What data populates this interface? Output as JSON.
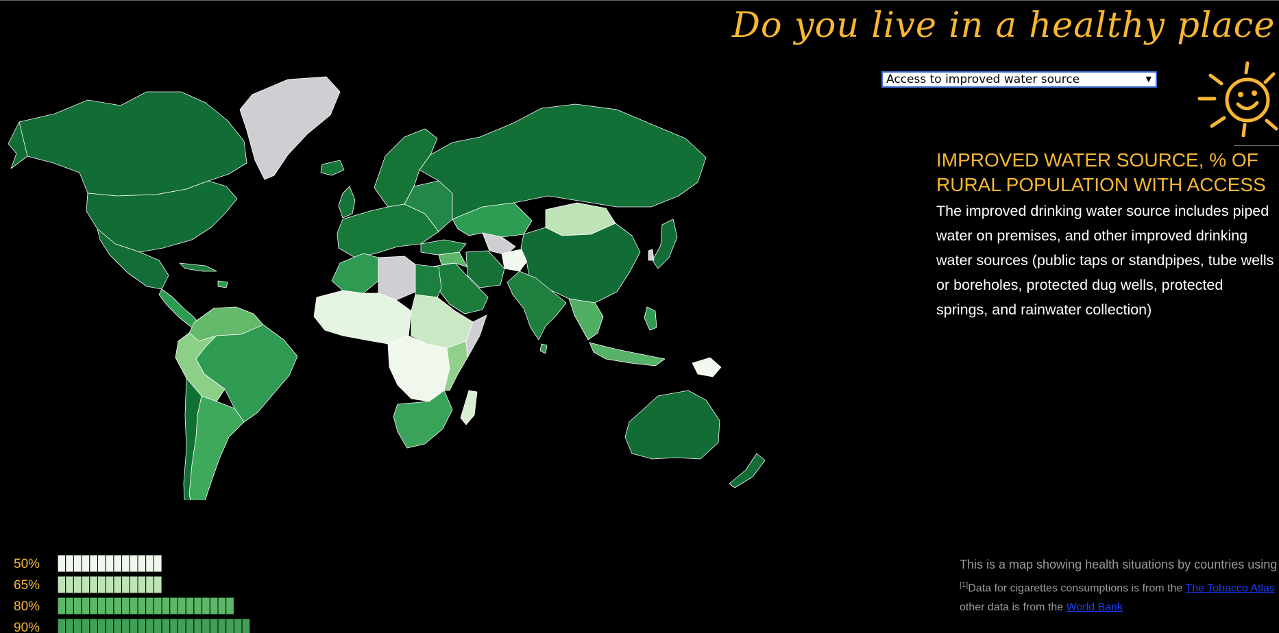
{
  "page": {
    "title": "Do you live in a healthy place?"
  },
  "selector": {
    "selected": "Access to improved water source"
  },
  "variable": {
    "title": "Improved water source, % of rural population with access",
    "description": "The improved drinking water source includes piped water on premises, and other improved drinking water sources (public taps or standpipes, tube wells or boreholes, protected dug wells, protected springs, and rainwater collection)"
  },
  "footer": {
    "about": "This is a map showing health situations by countries using five variables to depict health.",
    "ref_mark": "[1]",
    "source_1_text": "Data for cigarettes consumptions is from the ",
    "source_1_link": "The Tobacco Atlas",
    "source_2_text": "other data is from the ",
    "source_2_link": "World Bank"
  },
  "legend": {
    "items": [
      {
        "label": "50%",
        "color": "#f0f7ee",
        "count": 13
      },
      {
        "label": "65%",
        "color": "#bfe4b8",
        "count": 13
      },
      {
        "label": "80%",
        "color": "#5cb868",
        "count": 22
      },
      {
        "label": "90%",
        "color": "#41a056",
        "count": 24
      }
    ]
  },
  "colors": {
    "accent": "#f7b733",
    "background": "#000000",
    "no_data": "#cfcfd3",
    "scale": [
      "#f0f7ee",
      "#bfe4b8",
      "#79c47c",
      "#34a056",
      "#0c6b32"
    ]
  },
  "icons": {
    "sun": "sun-smiley-icon",
    "dropdown": "triangle-down-icon"
  }
}
